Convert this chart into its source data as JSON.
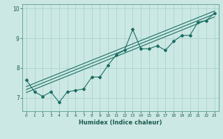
{
  "xlabel": "Humidex (Indice chaleur)",
  "bg_color": "#cce8e4",
  "line_color": "#1a6e64",
  "grid_color": "#aad4cc",
  "x_data": [
    0,
    1,
    2,
    3,
    4,
    5,
    6,
    7,
    8,
    9,
    10,
    11,
    12,
    13,
    14,
    15,
    16,
    17,
    18,
    19,
    20,
    21,
    22,
    23
  ],
  "y_data": [
    7.6,
    7.2,
    7.05,
    7.2,
    6.85,
    7.2,
    7.25,
    7.3,
    7.7,
    7.7,
    8.1,
    8.45,
    8.6,
    9.3,
    8.65,
    8.65,
    8.75,
    8.6,
    8.9,
    9.1,
    9.1,
    9.55,
    9.6,
    9.85
  ],
  "xlim": [
    -0.5,
    23.5
  ],
  "ylim": [
    6.55,
    10.15
  ],
  "yticks": [
    7,
    8,
    9,
    10
  ],
  "xticks": [
    0,
    1,
    2,
    3,
    4,
    5,
    6,
    7,
    8,
    9,
    10,
    11,
    12,
    13,
    14,
    15,
    16,
    17,
    18,
    19,
    20,
    21,
    22,
    23
  ],
  "regression_lines": [
    {
      "x0": 0,
      "y0": 7.28,
      "x1": 23,
      "y1": 9.82
    },
    {
      "x0": 0,
      "y0": 7.38,
      "x1": 23,
      "y1": 9.92
    },
    {
      "x0": 0,
      "y0": 7.18,
      "x1": 23,
      "y1": 9.72
    }
  ]
}
